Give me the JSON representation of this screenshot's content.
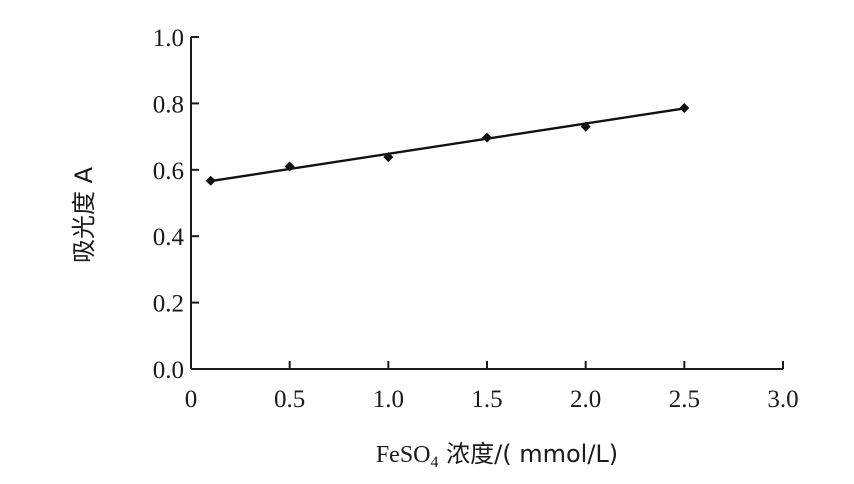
{
  "chart_data": {
    "type": "scatter",
    "title": "",
    "xlabel_prefix": "FeSO",
    "xlabel_subscript": "4",
    "xlabel_suffix": " 浓度/( mmol/L)",
    "ylabel": "吸光度 A",
    "xlim": [
      0,
      3.0
    ],
    "ylim": [
      0,
      1.0
    ],
    "x_ticks": [
      0,
      0.5,
      1.0,
      1.5,
      2.0,
      2.5,
      3.0
    ],
    "x_tick_labels": [
      "0",
      "0.5",
      "1.0",
      "1.5",
      "2.0",
      "2.5",
      "3.0"
    ],
    "y_ticks": [
      0,
      0.2,
      0.4,
      0.6,
      0.8,
      1.0
    ],
    "y_tick_labels": [
      "0.0",
      "0.2",
      "0.4",
      "0.6",
      "0.8",
      "1.0"
    ],
    "grid": false,
    "series": [
      {
        "marker": "diamond",
        "color": "#111111",
        "x": [
          0.1,
          0.5,
          1.0,
          1.5,
          2.0,
          2.5
        ],
        "y": [
          0.567,
          0.61,
          0.638,
          0.697,
          0.73,
          0.786
        ]
      }
    ],
    "fit_line": {
      "x": [
        0.1,
        2.5
      ],
      "y": [
        0.566,
        0.785
      ]
    }
  }
}
